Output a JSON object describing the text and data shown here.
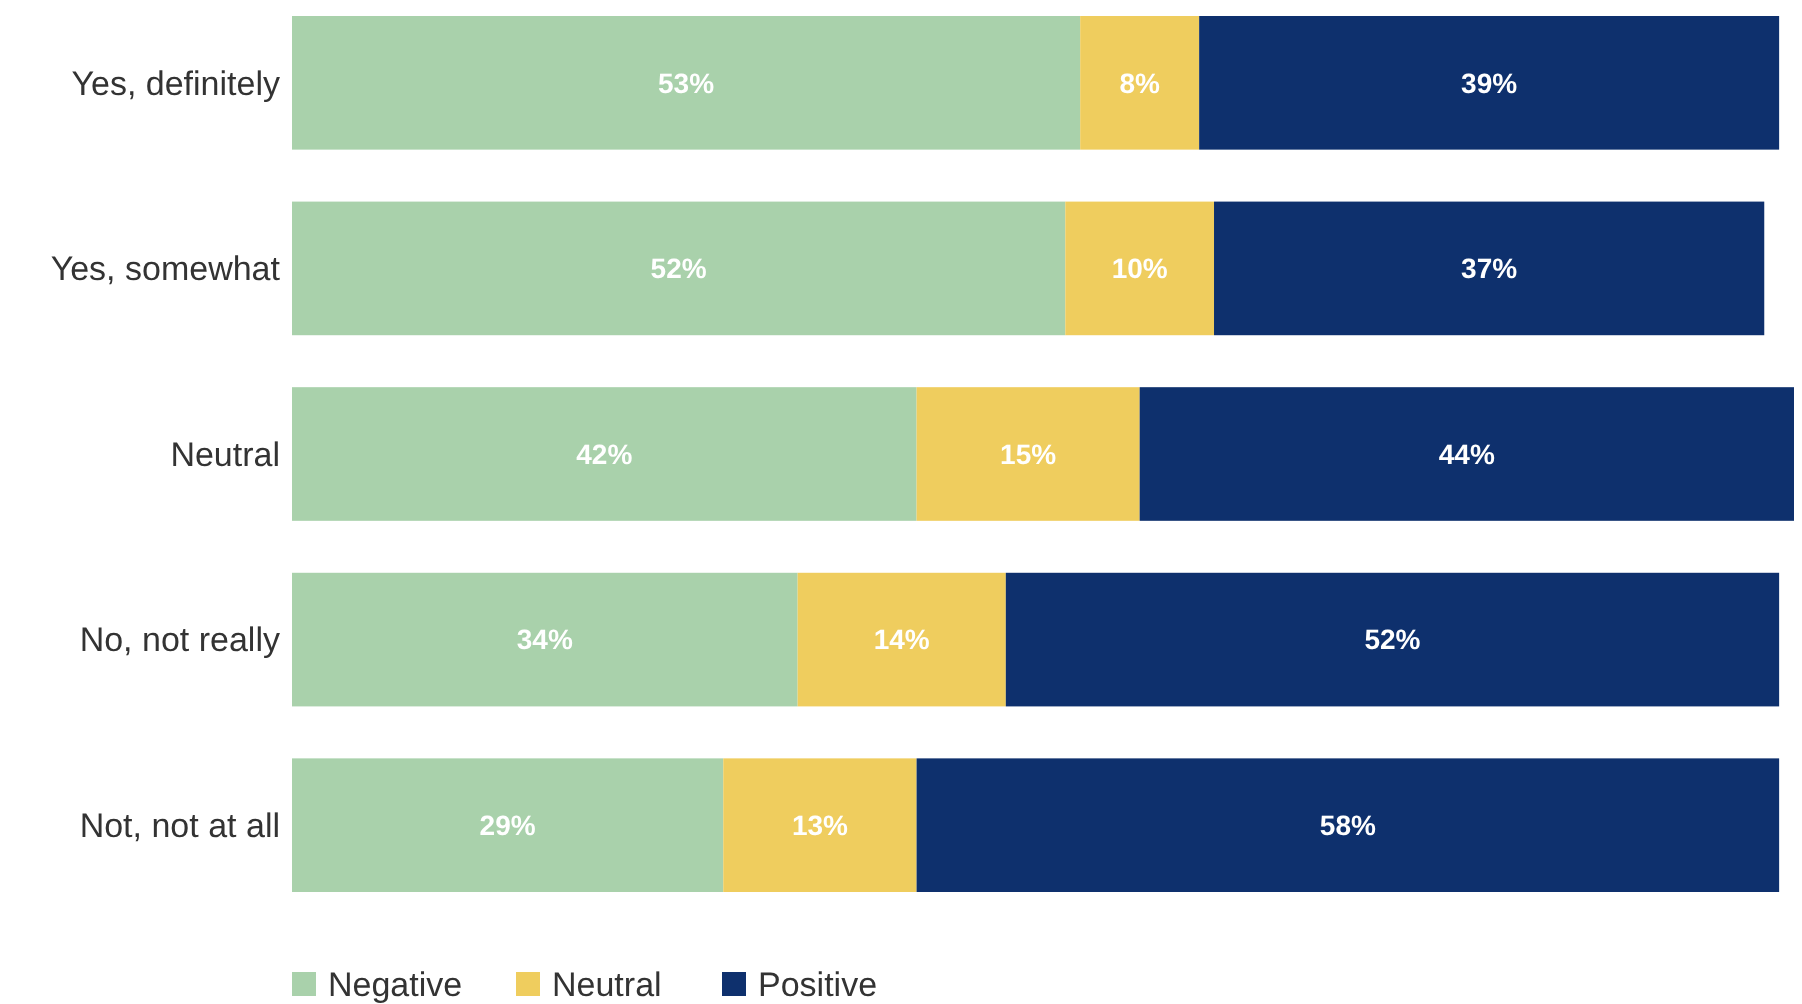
{
  "chart_data": {
    "type": "bar",
    "orientation": "horizontal",
    "stacked": true,
    "legend": "bottom left",
    "categories": [
      "Yes, definitely",
      "Yes, somewhat",
      "Neutral",
      "No, not really",
      "Not, not at all"
    ],
    "series": [
      {
        "name": "Negative",
        "color": "#a9d1ab",
        "values": [
          53,
          52,
          42,
          34,
          29
        ],
        "value_labels": [
          "53%",
          "52%",
          "42%",
          "34%",
          "29%"
        ]
      },
      {
        "name": "Neutral",
        "color": "#efcd5e",
        "values": [
          8,
          10,
          15,
          14,
          13
        ],
        "value_labels": [
          "8%",
          "10%",
          "15%",
          "14%",
          "13%"
        ]
      },
      {
        "name": "Positive",
        "color": "#0e306d",
        "values": [
          39,
          37,
          44,
          52,
          58
        ],
        "value_labels": [
          "39%",
          "37%",
          "44%",
          "52%",
          "58%"
        ]
      }
    ]
  }
}
